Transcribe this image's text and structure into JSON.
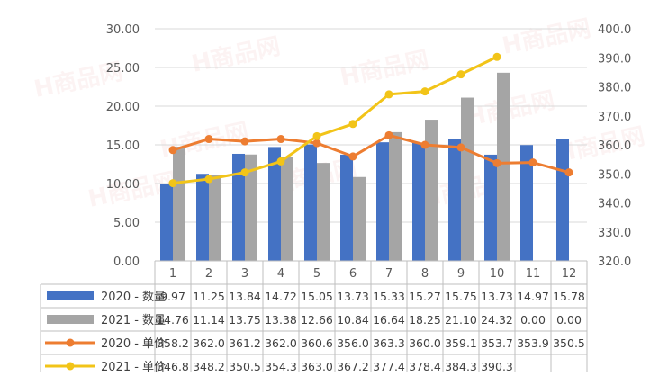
{
  "chart_data": {
    "type": "bar",
    "categories": [
      "1",
      "2",
      "3",
      "4",
      "5",
      "6",
      "7",
      "8",
      "9",
      "10",
      "11",
      "12"
    ],
    "series": [
      {
        "name": "2020 - 数量",
        "kind": "bar",
        "axis": "left",
        "color": "#4472C4",
        "values": [
          9.97,
          11.25,
          13.84,
          14.72,
          15.05,
          13.73,
          15.33,
          15.27,
          15.75,
          13.73,
          14.97,
          15.78
        ],
        "table_values": [
          "9.97",
          "11.25",
          "13.84",
          "14.72",
          "15.05",
          "13.73",
          "15.33",
          "15.27",
          "15.75",
          "13.73",
          "14.97",
          "15.78"
        ]
      },
      {
        "name": "2021 - 数量",
        "kind": "bar",
        "axis": "left",
        "color": "#A5A5A5",
        "values": [
          14.76,
          11.14,
          13.75,
          13.38,
          12.66,
          10.84,
          16.64,
          18.25,
          21.1,
          24.32,
          0.0,
          0.0
        ],
        "table_values": [
          "14.76",
          "11.14",
          "13.75",
          "13.38",
          "12.66",
          "10.84",
          "16.64",
          "18.25",
          "21.10",
          "24.32",
          "0.00",
          "0.00"
        ]
      },
      {
        "name": "2020 -  单价",
        "kind": "line",
        "axis": "right",
        "color": "#ED7D31",
        "values": [
          358.2,
          362.0,
          361.2,
          362.0,
          360.6,
          356.0,
          363.3,
          360.0,
          359.1,
          353.7,
          353.9,
          350.5
        ],
        "table_values": [
          "358.2",
          "362.0",
          "361.2",
          "362.0",
          "360.6",
          "356.0",
          "363.3",
          "360.0",
          "359.1",
          "353.7",
          "353.9",
          "350.5"
        ]
      },
      {
        "name": "2021 -  单价",
        "kind": "line",
        "axis": "right",
        "color": "#F2C418",
        "values": [
          346.8,
          348.2,
          350.5,
          354.3,
          363.0,
          367.2,
          377.4,
          378.4,
          384.3,
          390.3,
          null,
          null
        ],
        "table_values": [
          "346.8",
          "348.2",
          "350.5",
          "354.3",
          "363.0",
          "367.2",
          "377.4",
          "378.4",
          "384.3",
          "390.3",
          "",
          ""
        ]
      }
    ],
    "left_axis": {
      "ylim": [
        0,
        30
      ],
      "ticks": [
        "0.00",
        "5.00",
        "10.00",
        "15.00",
        "20.00",
        "25.00",
        "30.00"
      ]
    },
    "right_axis": {
      "ylim": [
        320,
        400
      ],
      "ticks": [
        "320.0",
        "330.0",
        "340.0",
        "350.0",
        "360.0",
        "370.0",
        "380.0",
        "390.0",
        "400.0"
      ]
    },
    "grid": true,
    "legend": "data-table-below",
    "watermark": "H商品网"
  }
}
